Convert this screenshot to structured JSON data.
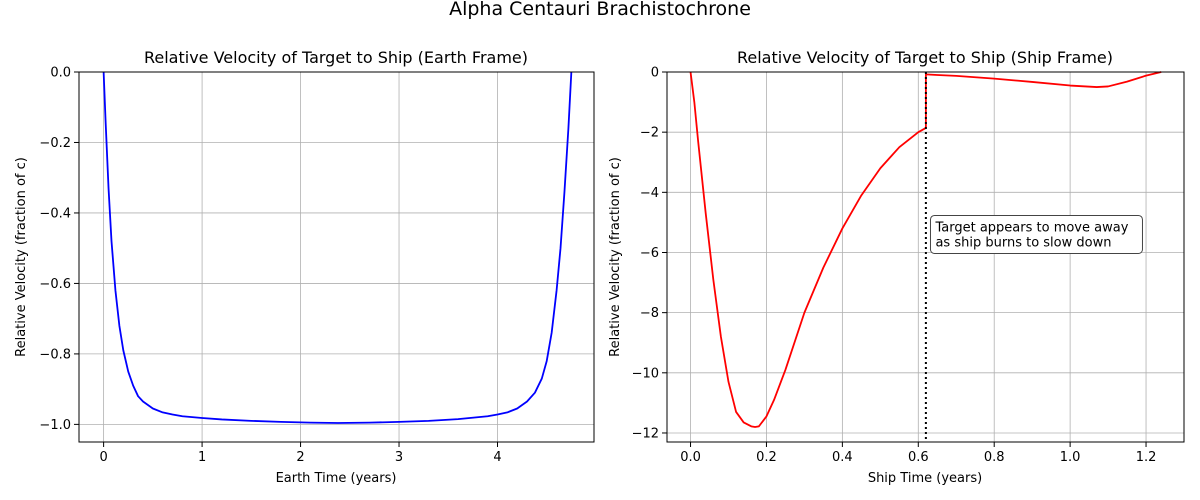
{
  "figure_title": "Alpha Centauri Brachistochrone",
  "chart_data": [
    {
      "type": "line",
      "title": "Relative Velocity of Target to Ship (Earth Frame)",
      "xlabel": "Earth Time (years)",
      "ylabel": "Relative Velocity (fraction of c)",
      "xlim": [
        -0.25,
        4.98
      ],
      "ylim": [
        -1.05,
        0.0
      ],
      "xticks": [
        0,
        1,
        2,
        3,
        4
      ],
      "xtick_labels": [
        "0",
        "1",
        "2",
        "3",
        "4"
      ],
      "yticks": [
        0.0,
        -0.2,
        -0.4,
        -0.6,
        -0.8,
        -1.0
      ],
      "ytick_labels": [
        "0.0",
        "−0.2",
        "−0.4",
        "−0.6",
        "−0.8",
        "−1.0"
      ],
      "grid": true,
      "series": [
        {
          "color": "#0000ff",
          "x": [
            0.0,
            0.02,
            0.05,
            0.08,
            0.12,
            0.16,
            0.2,
            0.25,
            0.3,
            0.35,
            0.4,
            0.5,
            0.6,
            0.7,
            0.8,
            1.0,
            1.2,
            1.5,
            1.8,
            2.1,
            2.38,
            2.7,
            3.0,
            3.3,
            3.6,
            3.9,
            4.0,
            4.1,
            4.2,
            4.3,
            4.38,
            4.45,
            4.5,
            4.55,
            4.6,
            4.64,
            4.68,
            4.72,
            4.75
          ],
          "y": [
            0.0,
            -0.14,
            -0.33,
            -0.48,
            -0.62,
            -0.72,
            -0.79,
            -0.85,
            -0.89,
            -0.92,
            -0.935,
            -0.955,
            -0.966,
            -0.972,
            -0.977,
            -0.982,
            -0.986,
            -0.99,
            -0.993,
            -0.995,
            -0.996,
            -0.995,
            -0.993,
            -0.99,
            -0.985,
            -0.977,
            -0.972,
            -0.966,
            -0.955,
            -0.935,
            -0.91,
            -0.87,
            -0.82,
            -0.74,
            -0.62,
            -0.5,
            -0.34,
            -0.16,
            0.0
          ]
        }
      ]
    },
    {
      "type": "line",
      "title": "Relative Velocity of Target to Ship (Ship Frame)",
      "xlabel": "Ship Time (years)",
      "ylabel": "Relative Velocity (fraction of c)",
      "xlim": [
        -0.062,
        1.3
      ],
      "ylim": [
        -12.3,
        0.0
      ],
      "xticks": [
        0.0,
        0.2,
        0.4,
        0.6,
        0.8,
        1.0,
        1.2
      ],
      "xtick_labels": [
        "0.0",
        "0.2",
        "0.4",
        "0.6",
        "0.8",
        "1.0",
        "1.2"
      ],
      "yticks": [
        0,
        -2,
        -4,
        -6,
        -8,
        -10,
        -12
      ],
      "ytick_labels": [
        "0",
        "−2",
        "−4",
        "−6",
        "−8",
        "−10",
        "−12"
      ],
      "grid": true,
      "series": [
        {
          "color": "#ff0000",
          "x": [
            0.0,
            0.01,
            0.02,
            0.04,
            0.06,
            0.08,
            0.1,
            0.12,
            0.14,
            0.16,
            0.17,
            0.18,
            0.2,
            0.22,
            0.25,
            0.3,
            0.35,
            0.4,
            0.45,
            0.5,
            0.55,
            0.6,
            0.62,
            0.62,
            0.65,
            0.7,
            0.8,
            0.9,
            1.0,
            1.07,
            1.1,
            1.15,
            1.2,
            1.24
          ],
          "y": [
            0.0,
            -1.0,
            -2.3,
            -4.7,
            -6.9,
            -8.8,
            -10.3,
            -11.3,
            -11.65,
            -11.78,
            -11.8,
            -11.78,
            -11.45,
            -10.9,
            -9.9,
            -8.0,
            -6.5,
            -5.2,
            -4.1,
            -3.2,
            -2.5,
            -2.0,
            -1.86,
            -0.08,
            -0.1,
            -0.13,
            -0.22,
            -0.33,
            -0.45,
            -0.5,
            -0.48,
            -0.32,
            -0.12,
            0.0
          ]
        }
      ],
      "vline": {
        "x": 0.62,
        "color": "#000000",
        "style": "dotted"
      },
      "annotation": {
        "x": 0.64,
        "y": -5.9,
        "lines": [
          "Target appears to move away",
          "as ship burns to slow down"
        ]
      }
    }
  ]
}
